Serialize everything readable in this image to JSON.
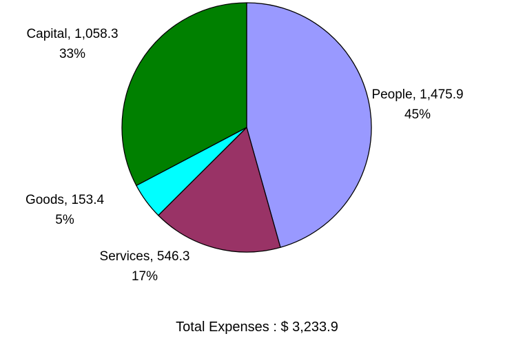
{
  "chart_data": {
    "type": "pie",
    "slices": [
      {
        "name": "People",
        "value_label": "1,475.9",
        "value": 1475.9,
        "percent_label": "45%",
        "color": "#9999ff"
      },
      {
        "name": "Services",
        "value_label": "546.3",
        "value": 546.3,
        "percent_label": "17%",
        "color": "#993366"
      },
      {
        "name": "Goods",
        "value_label": "153.4",
        "value": 153.4,
        "percent_label": "5%",
        "color": "#00ffff"
      },
      {
        "name": "Capital",
        "value_label": "1,058.3",
        "value": 1058.3,
        "percent_label": "33%",
        "color": "#008000"
      }
    ],
    "start": "12 o'clock",
    "direction": "clockwise",
    "legend": "none",
    "total_label": "Total Expenses : $ 3,233.9"
  }
}
